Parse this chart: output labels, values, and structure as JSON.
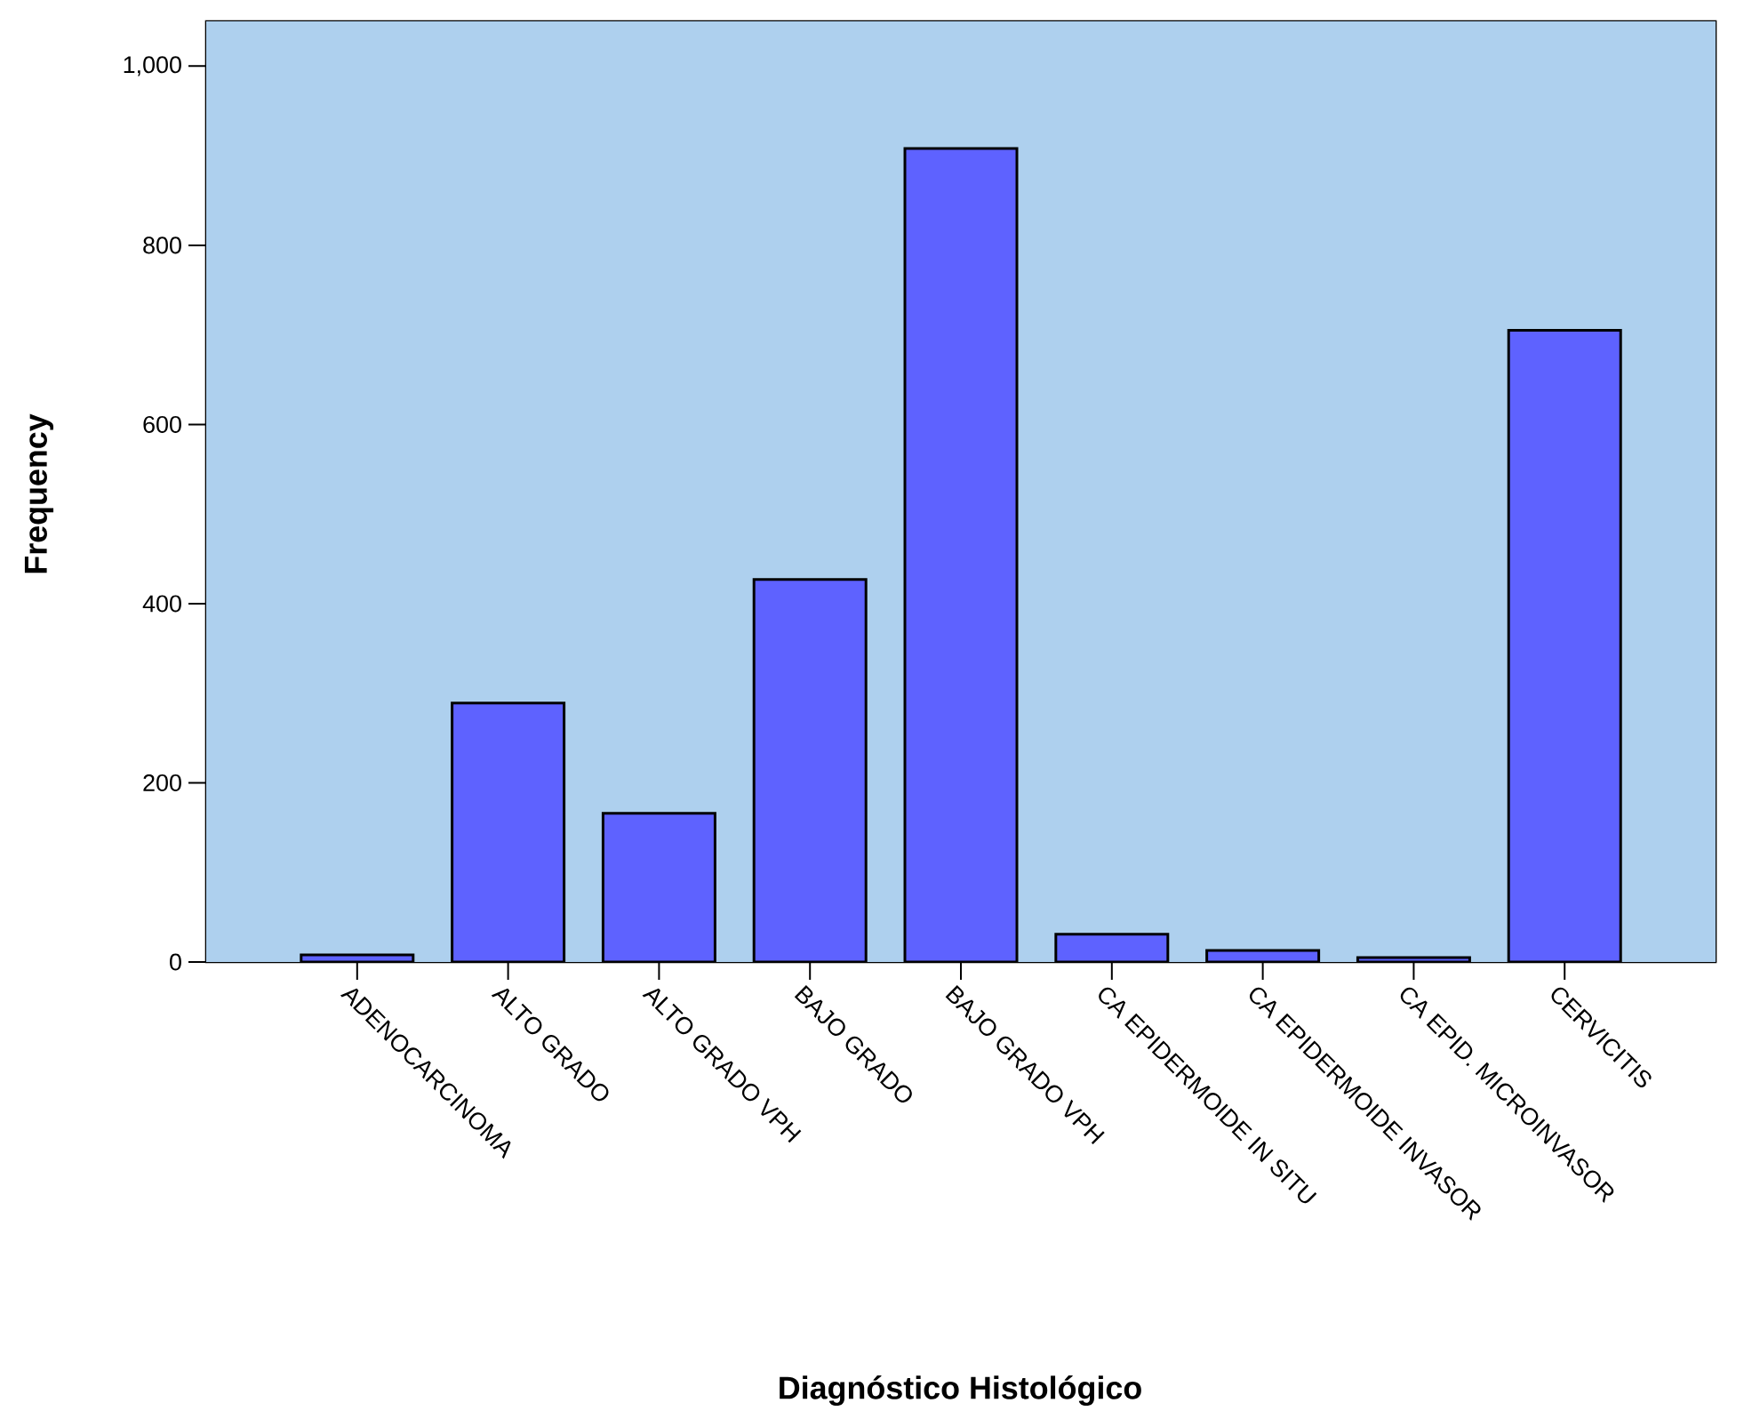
{
  "chart_data": {
    "type": "bar",
    "xlabel": "Diagnóstico Histológico",
    "ylabel": "Frequency",
    "categories": [
      "ADENOCARCINOMA",
      "ALTO GRADO",
      "ALTO GRADO VPH",
      "BAJO GRADO",
      "BAJO GRADO VPH",
      "CA EPIDERMOIDE IN SITU",
      "CA EPIDERMOIDE INVASOR",
      "CA EPID. MICROINVASOR",
      "CERVICITIS"
    ],
    "values": [
      8,
      289,
      166,
      427,
      908,
      31,
      13,
      5,
      705
    ],
    "color": "#5e62ff",
    "ylim": [
      0,
      1050
    ],
    "yticks": [
      0,
      200,
      400,
      600,
      800,
      {
        "value": 1000,
        "label": "1,000"
      }
    ]
  }
}
